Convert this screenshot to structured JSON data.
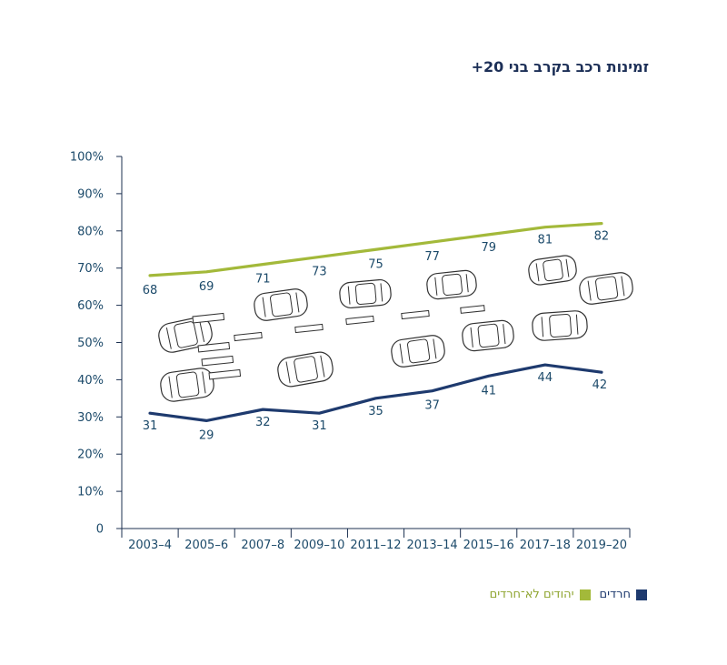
{
  "colors": {
    "haredi": "#1e3a6e",
    "non_haredi": "#a3b93a",
    "car_stroke": "#333333"
  },
  "chart_data": {
    "type": "line",
    "title": "זמינות רכב בקרב בני 20+",
    "xlabel": "",
    "ylabel": "",
    "categories": [
      "2003–4",
      "2005–6",
      "2007–8",
      "2009–10",
      "2011–12",
      "2013–14",
      "2015–16",
      "2017–18",
      "2019–20"
    ],
    "y_ticks": [
      "0",
      "10%",
      "20%",
      "30%",
      "40%",
      "50%",
      "60%",
      "70%",
      "80%",
      "90%",
      "100%"
    ],
    "ylim": [
      0,
      100
    ],
    "grid": false,
    "legend_position": "bottom-right",
    "series": [
      {
        "key": "non_haredi",
        "name": "יהודים לא־חרדים",
        "values": [
          68,
          69,
          71,
          73,
          75,
          77,
          79,
          81,
          82
        ]
      },
      {
        "key": "haredi",
        "name": "חרדים",
        "values": [
          31,
          29,
          32,
          31,
          35,
          37,
          41,
          44,
          42
        ]
      }
    ]
  },
  "legend": [
    {
      "key": "haredi",
      "label": "חרדים",
      "color": "#1e3a6e"
    },
    {
      "key": "non_haredi",
      "label": "יהודים לא־חרדים",
      "color": "#a3b93a"
    }
  ]
}
